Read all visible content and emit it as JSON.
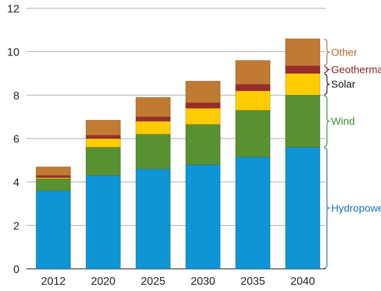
{
  "chart_data": {
    "type": "bar",
    "stacked": true,
    "categories": [
      "2012",
      "2020",
      "2025",
      "2030",
      "2035",
      "2040"
    ],
    "series": [
      {
        "name": "Hydropower",
        "color": "#0f95d6",
        "values": [
          3.6,
          4.3,
          4.6,
          4.8,
          5.15,
          5.6
        ]
      },
      {
        "name": "Wind",
        "color": "#5a9130",
        "values": [
          0.55,
          1.3,
          1.6,
          1.85,
          2.15,
          2.4
        ]
      },
      {
        "name": "Solar",
        "color": "#ffcc00",
        "values": [
          0.05,
          0.4,
          0.6,
          0.75,
          0.9,
          1.0
        ]
      },
      {
        "name": "Geothermal",
        "color": "#9c2b2b",
        "values": [
          0.1,
          0.15,
          0.2,
          0.25,
          0.3,
          0.35
        ]
      },
      {
        "name": "Other",
        "color": "#c07a32",
        "values": [
          0.4,
          0.7,
          0.9,
          1.0,
          1.1,
          1.25
        ]
      }
    ],
    "ylim": [
      0,
      12
    ],
    "yticks": [
      "0",
      "2",
      "4",
      "6",
      "8",
      "10",
      "12"
    ],
    "title": "",
    "xlabel": "",
    "ylabel": "",
    "grid": "horizontal",
    "legend": "right, bracketed labels beside last bar",
    "legend_colors": {
      "Other": "#b0682e",
      "Geothermal": "#8b1e1e",
      "Solar": "#111111",
      "Wind": "#3c8a28",
      "Hydropower": "#1a6fb5"
    }
  }
}
